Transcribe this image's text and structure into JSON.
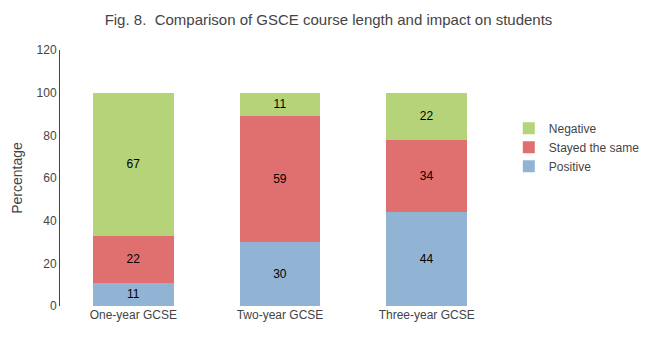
{
  "chart_data": {
    "type": "bar",
    "stacked": true,
    "title": "Fig. 8.  Comparison of GSCE course length and impact on students",
    "categories": [
      "One-year GCSE",
      "Two-year GCSE",
      "Three-year GCSE"
    ],
    "series": [
      {
        "name": "Positive",
        "color": "#92b4d4",
        "values": [
          11,
          30,
          44
        ]
      },
      {
        "name": "Stayed the same",
        "color": "#e07070",
        "values": [
          22,
          59,
          34
        ]
      },
      {
        "name": "Negative",
        "color": "#b5d47a",
        "values": [
          67,
          11,
          22
        ]
      }
    ],
    "ylabel": "Percentage",
    "ylim": [
      0,
      120
    ],
    "yticks": [
      0,
      20,
      40,
      60,
      80,
      100,
      120
    ],
    "grid": false,
    "legend": "right",
    "data_labels": true
  }
}
